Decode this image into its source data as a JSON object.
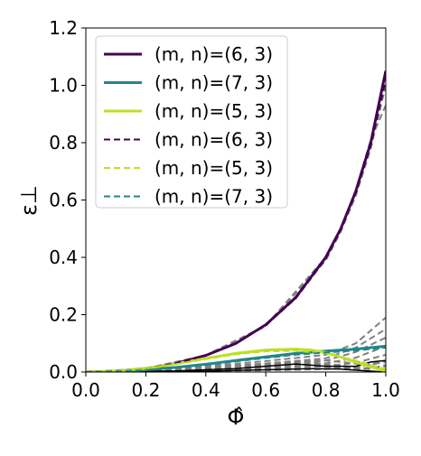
{
  "chart_data": {
    "type": "line",
    "xlabel": "Φ̂",
    "ylabel": "ε⊥",
    "xlim": [
      0.0,
      1.0
    ],
    "ylim": [
      0.0,
      1.2
    ],
    "xticks": [
      "0.0",
      "0.2",
      "0.4",
      "0.6",
      "0.8",
      "1.0"
    ],
    "yticks": [
      "0.0",
      "0.2",
      "0.4",
      "0.6",
      "0.8",
      "1.0",
      "1.2"
    ],
    "grid": false,
    "legend_position": "top-left",
    "series": [
      {
        "name": "(m, n)=(6, 3)",
        "color": "#440154",
        "style": "solid",
        "x": [
          0.0,
          0.1,
          0.2,
          0.3,
          0.4,
          0.5,
          0.6,
          0.7,
          0.8,
          0.85,
          0.9,
          0.95,
          1.0
        ],
        "y": [
          0.0,
          0.003,
          0.012,
          0.03,
          0.058,
          0.1,
          0.165,
          0.26,
          0.4,
          0.5,
          0.63,
          0.8,
          1.05
        ]
      },
      {
        "name": "(m, n)=(7, 3)",
        "color": "#21868c",
        "style": "solid",
        "x": [
          0.0,
          0.1,
          0.2,
          0.3,
          0.4,
          0.5,
          0.6,
          0.7,
          0.8,
          0.9,
          1.0
        ],
        "y": [
          0.0,
          0.002,
          0.008,
          0.016,
          0.027,
          0.04,
          0.053,
          0.065,
          0.073,
          0.08,
          0.09
        ]
      },
      {
        "name": "(m, n)=(5, 3)",
        "color": "#bddf26",
        "style": "solid",
        "x": [
          0.0,
          0.1,
          0.2,
          0.3,
          0.4,
          0.5,
          0.6,
          0.7,
          0.75,
          0.8,
          0.85,
          0.9,
          0.95,
          1.0
        ],
        "y": [
          0.0,
          0.003,
          0.013,
          0.029,
          0.048,
          0.065,
          0.077,
          0.08,
          0.077,
          0.068,
          0.052,
          0.035,
          0.018,
          0.003
        ]
      },
      {
        "name": "(m, n)=(6, 3)",
        "color": "#440154",
        "style": "dashed",
        "x": [
          0.0,
          0.1,
          0.2,
          0.3,
          0.4,
          0.5,
          0.6,
          0.7,
          0.8,
          0.85,
          0.9,
          0.95,
          1.0
        ],
        "y": [
          0.0,
          0.003,
          0.012,
          0.03,
          0.058,
          0.1,
          0.163,
          0.257,
          0.395,
          0.495,
          0.625,
          0.79,
          1.02
        ]
      },
      {
        "name": "(m, n)=(5, 3)",
        "color": "#bddf26",
        "style": "dashed",
        "x": [
          0.0,
          0.1,
          0.2,
          0.3,
          0.4,
          0.5,
          0.6,
          0.7,
          0.8,
          0.9,
          1.0
        ],
        "y": [
          0.0,
          0.003,
          0.012,
          0.027,
          0.045,
          0.062,
          0.072,
          0.074,
          0.065,
          0.04,
          0.01
        ]
      },
      {
        "name": "(m, n)=(7, 3)",
        "color": "#21868c",
        "style": "dashed",
        "x": [
          0.0,
          0.1,
          0.2,
          0.3,
          0.4,
          0.5,
          0.6,
          0.7,
          0.8,
          0.9,
          1.0
        ],
        "y": [
          0.0,
          0.002,
          0.007,
          0.015,
          0.025,
          0.037,
          0.049,
          0.06,
          0.068,
          0.075,
          0.085
        ]
      }
    ],
    "background_curves": [
      {
        "color": "#808080",
        "style": "dashed",
        "x": [
          0.0,
          0.2,
          0.4,
          0.6,
          0.8,
          0.85,
          0.9,
          0.95,
          1.0
        ],
        "y": [
          0.0,
          0.012,
          0.058,
          0.16,
          0.39,
          0.49,
          0.615,
          0.78,
          1.0
        ]
      },
      {
        "color": "#808080",
        "style": "dashed",
        "x": [
          0.0,
          0.2,
          0.4,
          0.6,
          0.8,
          0.85,
          0.9,
          0.95,
          1.0
        ],
        "y": [
          0.0,
          0.012,
          0.058,
          0.162,
          0.4,
          0.5,
          0.635,
          0.81,
          0.93
        ]
      },
      {
        "color": "#808080",
        "style": "dashed",
        "x": [
          0.0,
          0.2,
          0.4,
          0.6,
          0.8,
          0.9,
          1.0
        ],
        "y": [
          0.0,
          0.008,
          0.02,
          0.038,
          0.06,
          0.1,
          0.19
        ]
      },
      {
        "color": "#808080",
        "style": "dashed",
        "x": [
          0.0,
          0.2,
          0.4,
          0.6,
          0.8,
          0.9,
          1.0
        ],
        "y": [
          0.0,
          0.006,
          0.016,
          0.03,
          0.048,
          0.085,
          0.15
        ]
      },
      {
        "color": "#808080",
        "style": "dashed",
        "x": [
          0.0,
          0.2,
          0.4,
          0.6,
          0.8,
          0.9,
          1.0
        ],
        "y": [
          0.0,
          0.005,
          0.012,
          0.024,
          0.04,
          0.07,
          0.12
        ]
      },
      {
        "color": "#808080",
        "style": "dashed",
        "x": [
          0.0,
          0.2,
          0.4,
          0.6,
          0.8,
          0.9,
          1.0
        ],
        "y": [
          0.0,
          0.004,
          0.01,
          0.018,
          0.03,
          0.05,
          0.09
        ]
      },
      {
        "color": "#808080",
        "style": "dashed",
        "x": [
          0.0,
          0.2,
          0.4,
          0.6,
          0.8,
          0.9,
          1.0
        ],
        "y": [
          0.0,
          0.003,
          0.007,
          0.012,
          0.02,
          0.032,
          0.06
        ]
      },
      {
        "color": "#808080",
        "style": "dashed",
        "x": [
          0.0,
          0.2,
          0.4,
          0.6,
          0.8,
          0.9,
          1.0
        ],
        "y": [
          0.0,
          0.002,
          0.004,
          0.006,
          0.01,
          0.018,
          0.035
        ]
      },
      {
        "color": "#808080",
        "style": "dashed",
        "x": [
          0.0,
          0.2,
          0.4,
          0.5,
          0.6,
          0.7,
          0.8,
          0.9,
          1.0
        ],
        "y": [
          0.0,
          0.003,
          0.008,
          0.015,
          0.025,
          0.035,
          0.03,
          0.015,
          0.04
        ]
      },
      {
        "color": "#808080",
        "style": "dashed",
        "x": [
          0.0,
          0.2,
          0.4,
          0.5,
          0.6,
          0.7,
          0.8,
          0.9,
          1.0
        ],
        "y": [
          0.0,
          0.002,
          0.006,
          0.012,
          0.02,
          0.03,
          0.025,
          0.01,
          0.02
        ]
      },
      {
        "color": "#808080",
        "style": "dashed",
        "x": [
          0.0,
          0.2,
          0.4,
          0.6,
          0.7,
          0.8,
          0.9,
          1.0
        ],
        "y": [
          0.0,
          0.004,
          0.012,
          0.028,
          0.036,
          0.04,
          0.03,
          0.008
        ]
      },
      {
        "color": "#808080",
        "style": "dashed",
        "x": [
          0.0,
          0.3,
          0.5,
          0.65,
          0.75,
          0.85,
          0.95,
          1.0
        ],
        "y": [
          0.0,
          0.004,
          0.01,
          0.018,
          0.022,
          0.015,
          0.01,
          0.025
        ]
      },
      {
        "color": "#000000",
        "style": "solid",
        "x": [
          0.0,
          0.3,
          0.5,
          0.6,
          0.7,
          0.8,
          0.9,
          0.95,
          1.0
        ],
        "y": [
          0.0,
          0.004,
          0.012,
          0.02,
          0.028,
          0.02,
          0.02,
          0.035,
          0.04
        ]
      },
      {
        "color": "#000000",
        "style": "solid",
        "x": [
          0.0,
          0.4,
          0.6,
          0.75,
          0.85,
          0.92,
          1.0
        ],
        "y": [
          0.0,
          0.003,
          0.008,
          0.012,
          0.01,
          0.005,
          0.0
        ]
      }
    ]
  }
}
